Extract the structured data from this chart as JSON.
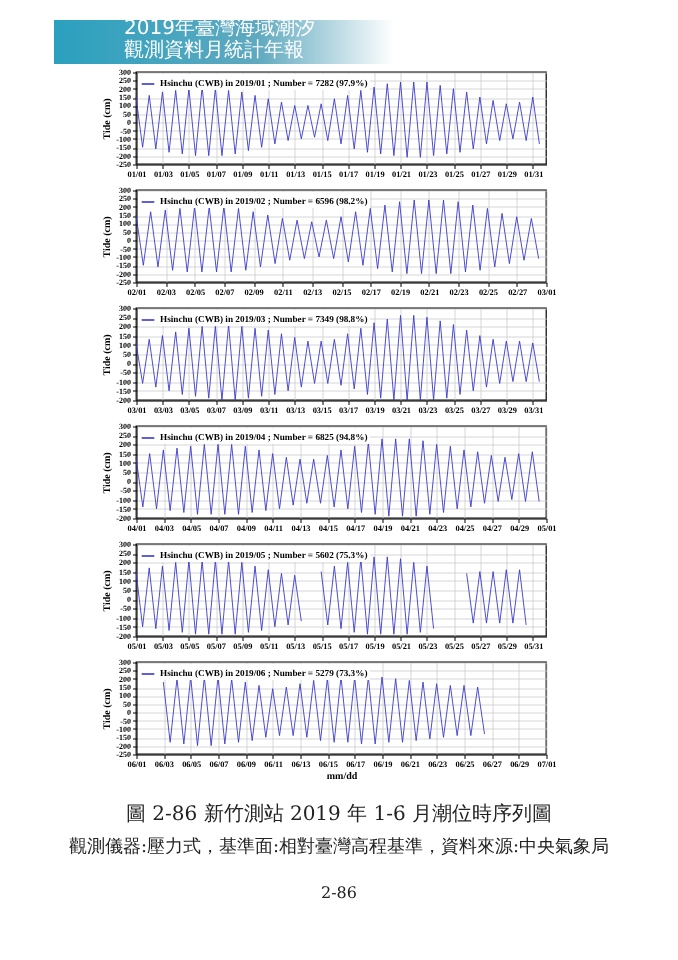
{
  "chart_data": [
    {
      "type": "line",
      "ylabel": "Tide (cm)",
      "annotations": [
        "2019年臺灣海域潮汐",
        "觀測資料月統計年報"
      ],
      "grid": true,
      "legend": "top left",
      "xlim": [
        "--01-01",
        "--02-01"
      ],
      "ylim": [
        -250,
        300
      ],
      "yticks": [
        -250,
        -200,
        -150,
        -100,
        -50,
        0,
        50,
        100,
        150,
        200,
        250,
        300
      ],
      "xticks": [
        {
          "value": "--01-01",
          "label": "01/01"
        },
        {
          "value": "--01-03",
          "label": "01/03"
        },
        {
          "value": "--01-05",
          "label": "01/05"
        },
        {
          "value": "--01-07",
          "label": "01/07"
        },
        {
          "value": "--01-09",
          "label": "01/09"
        },
        {
          "value": "--01-11",
          "label": "01/11"
        },
        {
          "value": "--01-13",
          "label": "01/13"
        },
        {
          "value": "--01-15",
          "label": "01/15"
        },
        {
          "value": "--01-17",
          "label": "01/17"
        },
        {
          "value": "--01-19",
          "label": "01/19"
        },
        {
          "value": "--01-21",
          "label": "01/21"
        },
        {
          "value": "--01-23",
          "label": "01/23"
        },
        {
          "value": "--01-25",
          "label": "01/25"
        },
        {
          "value": "--01-27",
          "label": "01/27"
        },
        {
          "value": "--01-29",
          "label": "01/29"
        },
        {
          "value": "--01-31",
          "label": "01/31"
        }
      ],
      "x": [
        "--01-01",
        "--01-01T12:00",
        "--01-02",
        "--01-02T12:00",
        "--01-03",
        "--01-03T12:00",
        "--01-04",
        "--01-04T12:00",
        "--01-05",
        "--01-05T12:00",
        "--01-06",
        "--01-06T12:00",
        "--01-07",
        "--01-07T12:00",
        "--01-08",
        "--01-08T12:00",
        "--01-09",
        "--01-09T12:00",
        "--01-10",
        "--01-10T12:00",
        "--01-11",
        "--01-11T12:00",
        "--01-12",
        "--01-12T12:00",
        "--01-13",
        "--01-13T12:00",
        "--01-14",
        "--01-14T12:00",
        "--01-15",
        "--01-15T12:00",
        "--01-16",
        "--01-16T12:00",
        "--01-17",
        "--01-17T12:00",
        "--01-18",
        "--01-18T12:00",
        "--01-19",
        "--01-19T12:00",
        "--01-20",
        "--01-20T12:00",
        "--01-21",
        "--01-21T12:00",
        "--01-22",
        "--01-22T12:00",
        "--01-23",
        "--01-23T12:00",
        "--01-24",
        "--01-24T12:00",
        "--01-25",
        "--01-25T12:00",
        "--01-26",
        "--01-26T12:00",
        "--01-27",
        "--01-27T12:00",
        "--01-28",
        "--01-28T12:00",
        "--01-29",
        "--01-29T12:00",
        "--01-30",
        "--01-30T12:00",
        "--01-31",
        "--01-31T12:00"
      ],
      "series": [
        {
          "name": "Hsinchu (CWB) in 2019/01 ; Number = 7282 (97.9%)",
          "color": "#3a3acc",
          "values": [
            150,
            -150,
            160,
            -160,
            180,
            -180,
            190,
            -190,
            200,
            -200,
            210,
            -200,
            200,
            -200,
            190,
            -190,
            180,
            -170,
            160,
            -150,
            140,
            -130,
            120,
            -110,
            100,
            -100,
            100,
            -90,
            110,
            -110,
            140,
            -130,
            160,
            -160,
            190,
            -180,
            210,
            -190,
            230,
            -200,
            240,
            -210,
            240,
            -210,
            240,
            -200,
            220,
            -190,
            200,
            -180,
            180,
            -160,
            150,
            -130,
            130,
            -110,
            110,
            -100,
            120,
            -110,
            150,
            -130
          ]
        }
      ]
    },
    {
      "type": "line",
      "ylabel": "Tide (cm)",
      "grid": true,
      "legend": "top left",
      "xlim": [
        "--02-01",
        "--03-01"
      ],
      "ylim": [
        -250,
        300
      ],
      "yticks": [
        -250,
        -200,
        -150,
        -100,
        -50,
        0,
        50,
        100,
        150,
        200,
        250,
        300
      ],
      "xticks": [
        {
          "value": "--02-01",
          "label": "02/01"
        },
        {
          "value": "--02-03",
          "label": "02/03"
        },
        {
          "value": "--02-05",
          "label": "02/05"
        },
        {
          "value": "--02-07",
          "label": "02/07"
        },
        {
          "value": "--02-09",
          "label": "02/09"
        },
        {
          "value": "--02-11",
          "label": "02/11"
        },
        {
          "value": "--02-13",
          "label": "02/13"
        },
        {
          "value": "--02-15",
          "label": "02/15"
        },
        {
          "value": "--02-17",
          "label": "02/17"
        },
        {
          "value": "--02-19",
          "label": "02/19"
        },
        {
          "value": "--02-21",
          "label": "02/21"
        },
        {
          "value": "--02-23",
          "label": "02/23"
        },
        {
          "value": "--02-25",
          "label": "02/25"
        },
        {
          "value": "--02-27",
          "label": "02/27"
        },
        {
          "value": "--03-01",
          "label": "03/01"
        }
      ],
      "x": [
        "--02-01",
        "--02-01T12:00",
        "--02-02",
        "--02-02T12:00",
        "--02-03",
        "--02-03T12:00",
        "--02-04",
        "--02-04T12:00",
        "--02-05",
        "--02-05T12:00",
        "--02-06",
        "--02-06T12:00",
        "--02-07",
        "--02-07T12:00",
        "--02-08",
        "--02-08T12:00",
        "--02-09",
        "--02-09T12:00",
        "--02-10",
        "--02-10T12:00",
        "--02-11",
        "--02-11T12:00",
        "--02-12",
        "--02-12T12:00",
        "--02-13",
        "--02-13T12:00",
        "--02-14",
        "--02-14T12:00",
        "--02-15",
        "--02-15T12:00",
        "--02-16",
        "--02-16T12:00",
        "--02-17",
        "--02-17T12:00",
        "--02-18",
        "--02-18T12:00",
        "--02-19",
        "--02-19T12:00",
        "--02-20",
        "--02-20T12:00",
        "--02-21",
        "--02-21T12:00",
        "--02-22",
        "--02-22T12:00",
        "--02-23",
        "--02-23T12:00",
        "--02-24",
        "--02-24T12:00",
        "--02-25",
        "--02-25T12:00",
        "--02-26",
        "--02-26T12:00",
        "--02-27",
        "--02-27T12:00",
        "--02-28",
        "--02-28T12:00"
      ],
      "series": [
        {
          "name": "Hsinchu (CWB) in 2019/02 ; Number = 6596 (98.2%)",
          "color": "#3a3acc",
          "values": [
            150,
            -150,
            170,
            -160,
            180,
            -180,
            190,
            -190,
            200,
            -190,
            200,
            -190,
            200,
            -190,
            190,
            -180,
            170,
            -160,
            150,
            -140,
            130,
            -120,
            120,
            -110,
            110,
            -100,
            120,
            -110,
            140,
            -130,
            170,
            -150,
            190,
            -170,
            210,
            -190,
            230,
            -200,
            240,
            -200,
            240,
            -200,
            240,
            -200,
            230,
            -190,
            210,
            -180,
            190,
            -160,
            160,
            -140,
            140,
            -120,
            130,
            -110
          ]
        }
      ]
    },
    {
      "type": "line",
      "ylabel": "Tide (cm)",
      "grid": true,
      "legend": "top left",
      "xlim": [
        "--03-01",
        "--04-01"
      ],
      "ylim": [
        -200,
        300
      ],
      "yticks": [
        -200,
        -150,
        -100,
        -50,
        0,
        50,
        100,
        150,
        200,
        250,
        300
      ],
      "xticks": [
        {
          "value": "--03-01",
          "label": "03/01"
        },
        {
          "value": "--03-03",
          "label": "03/03"
        },
        {
          "value": "--03-05",
          "label": "03/05"
        },
        {
          "value": "--03-07",
          "label": "03/07"
        },
        {
          "value": "--03-09",
          "label": "03/09"
        },
        {
          "value": "--03-11",
          "label": "03/11"
        },
        {
          "value": "--03-13",
          "label": "03/13"
        },
        {
          "value": "--03-15",
          "label": "03/15"
        },
        {
          "value": "--03-17",
          "label": "03/17"
        },
        {
          "value": "--03-19",
          "label": "03/19"
        },
        {
          "value": "--03-21",
          "label": "03/21"
        },
        {
          "value": "--03-23",
          "label": "03/23"
        },
        {
          "value": "--03-25",
          "label": "03/25"
        },
        {
          "value": "--03-27",
          "label": "03/27"
        },
        {
          "value": "--03-29",
          "label": "03/29"
        },
        {
          "value": "--03-31",
          "label": "03/31"
        }
      ],
      "x": [
        "--03-01",
        "--03-01T12:00",
        "--03-02",
        "--03-02T12:00",
        "--03-03",
        "--03-03T12:00",
        "--03-04",
        "--03-04T12:00",
        "--03-05",
        "--03-05T12:00",
        "--03-06",
        "--03-06T12:00",
        "--03-07",
        "--03-07T12:00",
        "--03-08",
        "--03-08T12:00",
        "--03-09",
        "--03-09T12:00",
        "--03-10",
        "--03-10T12:00",
        "--03-11",
        "--03-11T12:00",
        "--03-12",
        "--03-12T12:00",
        "--03-13",
        "--03-13T12:00",
        "--03-14",
        "--03-14T12:00",
        "--03-15",
        "--03-15T12:00",
        "--03-16",
        "--03-16T12:00",
        "--03-17",
        "--03-17T12:00",
        "--03-18",
        "--03-18T12:00",
        "--03-19",
        "--03-19T12:00",
        "--03-20",
        "--03-20T12:00",
        "--03-21",
        "--03-21T12:00",
        "--03-22",
        "--03-22T12:00",
        "--03-23",
        "--03-23T12:00",
        "--03-24",
        "--03-24T12:00",
        "--03-25",
        "--03-25T12:00",
        "--03-26",
        "--03-26T12:00",
        "--03-27",
        "--03-27T12:00",
        "--03-28",
        "--03-28T12:00",
        "--03-29",
        "--03-29T12:00",
        "--03-30",
        "--03-30T12:00",
        "--03-31",
        "--03-31T12:00"
      ],
      "series": [
        {
          "name": "Hsinchu (CWB) in 2019/03 ; Number = 7349 (98.8%)",
          "color": "#3a3acc",
          "values": [
            110,
            -110,
            130,
            -130,
            150,
            -150,
            170,
            -170,
            190,
            -180,
            200,
            -190,
            200,
            -200,
            210,
            -200,
            200,
            -190,
            190,
            -180,
            180,
            -170,
            160,
            -150,
            140,
            -130,
            120,
            -110,
            120,
            -110,
            130,
            -120,
            160,
            -140,
            190,
            -170,
            220,
            -190,
            240,
            -200,
            260,
            -200,
            260,
            -200,
            250,
            -200,
            230,
            -190,
            210,
            -170,
            180,
            -150,
            150,
            -130,
            130,
            -110,
            120,
            -100,
            120,
            -100,
            110,
            -100
          ]
        }
      ]
    },
    {
      "type": "line",
      "ylabel": "Tide (cm)",
      "grid": true,
      "legend": "top left",
      "xlim": [
        "--04-01",
        "--05-01"
      ],
      "ylim": [
        -200,
        300
      ],
      "yticks": [
        -200,
        -150,
        -100,
        -50,
        0,
        50,
        100,
        150,
        200,
        250,
        300
      ],
      "xticks": [
        {
          "value": "--04-01",
          "label": "04/01"
        },
        {
          "value": "--04-03",
          "label": "04/03"
        },
        {
          "value": "--04-05",
          "label": "04/05"
        },
        {
          "value": "--04-07",
          "label": "04/07"
        },
        {
          "value": "--04-09",
          "label": "04/09"
        },
        {
          "value": "--04-11",
          "label": "04/11"
        },
        {
          "value": "--04-13",
          "label": "04/13"
        },
        {
          "value": "--04-15",
          "label": "04/15"
        },
        {
          "value": "--04-17",
          "label": "04/17"
        },
        {
          "value": "--04-19",
          "label": "04/19"
        },
        {
          "value": "--04-21",
          "label": "04/21"
        },
        {
          "value": "--04-23",
          "label": "04/23"
        },
        {
          "value": "--04-25",
          "label": "04/25"
        },
        {
          "value": "--04-27",
          "label": "04/27"
        },
        {
          "value": "--04-29",
          "label": "04/29"
        },
        {
          "value": "--05-01",
          "label": "05/01"
        }
      ],
      "x": [
        "--04-01",
        "--04-01T12:00",
        "--04-02",
        "--04-02T12:00",
        "--04-03",
        "--04-03T12:00",
        "--04-04",
        "--04-04T12:00",
        "--04-05",
        "--04-05T12:00",
        "--04-06",
        "--04-06T12:00",
        "--04-07",
        "--04-07T12:00",
        "--04-08",
        "--04-08T12:00",
        "--04-09",
        "--04-09T12:00",
        "--04-10",
        "--04-10T12:00",
        "--04-11",
        "--04-11T12:00",
        "--04-12",
        "--04-12T12:00",
        "--04-13",
        "--04-13T12:00",
        "--04-14",
        "--04-14T12:00",
        "--04-15",
        "--04-15T12:00",
        "--04-16",
        "--04-16T12:00",
        "--04-17",
        "--04-17T12:00",
        "--04-18",
        "--04-18T12:00",
        "--04-19",
        "--04-19T12:00",
        "--04-20",
        "--04-20T12:00",
        "--04-21",
        "--04-21T12:00",
        "--04-22",
        "--04-22T12:00",
        "--04-23",
        "--04-23T12:00",
        "--04-24",
        "--04-24T12:00",
        "--04-25",
        "--04-25T12:00",
        "--04-26",
        "--04-26T12:00",
        "--04-27",
        "--04-27T12:00",
        "--04-28",
        "--04-28T12:00",
        "--04-29",
        "--04-29T12:00",
        "--04-30",
        "--04-30T12:00"
      ],
      "series": [
        {
          "name": "Hsinchu (CWB) in 2019/04 ; Number = 6825 (94.8%)",
          "color": "#3a3acc",
          "values": [
            130,
            -140,
            150,
            -150,
            170,
            -160,
            180,
            -170,
            190,
            -180,
            200,
            -180,
            200,
            -180,
            200,
            -180,
            190,
            -170,
            170,
            -160,
            150,
            -150,
            130,
            -130,
            120,
            -120,
            120,
            -120,
            140,
            -140,
            170,
            -150,
            190,
            -170,
            210,
            -180,
            230,
            -190,
            230,
            -190,
            230,
            -190,
            220,
            -180,
            200,
            -170,
            190,
            -150,
            170,
            -140,
            160,
            -120,
            140,
            -110,
            130,
            -100,
            150,
            -110,
            160,
            -110
          ]
        }
      ]
    },
    {
      "type": "line",
      "ylabel": "Tide (cm)",
      "grid": true,
      "legend": "top left",
      "xlim": [
        "--05-01",
        "--06-01"
      ],
      "ylim": [
        -200,
        300
      ],
      "yticks": [
        -200,
        -150,
        -100,
        -50,
        0,
        50,
        100,
        150,
        200,
        250,
        300
      ],
      "xticks": [
        {
          "value": "--05-01",
          "label": "05/01"
        },
        {
          "value": "--05-03",
          "label": "05/03"
        },
        {
          "value": "--05-05",
          "label": "05/05"
        },
        {
          "value": "--05-07",
          "label": "05/07"
        },
        {
          "value": "--05-09",
          "label": "05/09"
        },
        {
          "value": "--05-11",
          "label": "05/11"
        },
        {
          "value": "--05-13",
          "label": "05/13"
        },
        {
          "value": "--05-15",
          "label": "05/15"
        },
        {
          "value": "--05-17",
          "label": "05/17"
        },
        {
          "value": "--05-19",
          "label": "05/19"
        },
        {
          "value": "--05-21",
          "label": "05/21"
        },
        {
          "value": "--05-23",
          "label": "05/23"
        },
        {
          "value": "--05-25",
          "label": "05/25"
        },
        {
          "value": "--05-27",
          "label": "05/27"
        },
        {
          "value": "--05-29",
          "label": "05/29"
        },
        {
          "value": "--05-31",
          "label": "05/31"
        }
      ],
      "x": [
        "--05-01",
        "--05-01T12:00",
        "--05-02",
        "--05-02T12:00",
        "--05-03",
        "--05-03T12:00",
        "--05-04",
        "--05-04T12:00",
        "--05-05",
        "--05-05T12:00",
        "--05-06",
        "--05-06T12:00",
        "--05-07",
        "--05-07T12:00",
        "--05-08",
        "--05-08T12:00",
        "--05-09",
        "--05-09T12:00",
        "--05-10",
        "--05-10T12:00",
        "--05-11",
        "--05-11T12:00",
        "--05-12",
        "--05-12T12:00",
        "--05-13",
        "--05-13T12:00",
        "--05-14",
        "--05-14T12:00",
        "--05-15",
        "--05-15T12:00",
        "--05-16",
        "--05-16T12:00",
        "--05-17",
        "--05-17T12:00",
        "--05-18",
        "--05-18T12:00",
        "--05-19",
        "--05-19T12:00",
        "--05-20",
        "--05-20T12:00",
        "--05-21",
        "--05-21T12:00",
        "--05-22",
        "--05-22T12:00",
        "--05-23",
        "--05-23T12:00",
        "--05-24",
        "--05-24T12:00",
        "--05-25",
        "--05-25T12:00",
        "--05-26",
        "--05-26T12:00",
        "--05-27",
        "--05-27T12:00",
        "--05-28",
        "--05-28T12:00",
        "--05-29",
        "--05-29T12:00",
        "--05-30",
        "--05-30T12:00"
      ],
      "series": [
        {
          "name": "Hsinchu (CWB) in 2019/05 ; Number = 5602 (75.3%)",
          "color": "#3a3acc",
          "values": [
            150,
            -150,
            170,
            -160,
            180,
            -170,
            200,
            -180,
            210,
            -190,
            210,
            -190,
            210,
            -190,
            210,
            -190,
            200,
            -180,
            180,
            -170,
            160,
            -150,
            140,
            -140,
            130,
            -120,
            null,
            null,
            150,
            -140,
            180,
            -160,
            200,
            -180,
            220,
            -190,
            230,
            -190,
            230,
            -190,
            220,
            -190,
            200,
            -180,
            180,
            -160,
            null,
            null,
            null,
            null,
            140,
            -130,
            150,
            -130,
            150,
            -130,
            160,
            -130,
            160,
            -140
          ]
        }
      ]
    },
    {
      "type": "line",
      "ylabel": "Tide (cm)",
      "xlabel": "mm/dd",
      "annotations": [
        "圖 2-86 新竹測站 2019 年 1-6 月潮位時序列圖",
        "觀測儀器:壓力式，基準面:相對臺灣高程基準，資料來源:中央氣象局",
        "2-86"
      ],
      "grid": true,
      "legend": "top left",
      "xlim": [
        "--06-01",
        "--07-01"
      ],
      "ylim": [
        -250,
        300
      ],
      "yticks": [
        -250,
        -200,
        -150,
        -100,
        -50,
        0,
        50,
        100,
        150,
        200,
        250,
        300
      ],
      "xticks": [
        {
          "value": "--06-01",
          "label": "06/01"
        },
        {
          "value": "--06-03",
          "label": "06/03"
        },
        {
          "value": "--06-05",
          "label": "06/05"
        },
        {
          "value": "--06-07",
          "label": "06/07"
        },
        {
          "value": "--06-09",
          "label": "06/09"
        },
        {
          "value": "--06-11",
          "label": "06/11"
        },
        {
          "value": "--06-13",
          "label": "06/13"
        },
        {
          "value": "--06-15",
          "label": "06/15"
        },
        {
          "value": "--06-17",
          "label": "06/17"
        },
        {
          "value": "--06-19",
          "label": "06/19"
        },
        {
          "value": "--06-21",
          "label": "06/21"
        },
        {
          "value": "--06-23",
          "label": "06/23"
        },
        {
          "value": "--06-25",
          "label": "06/25"
        },
        {
          "value": "--06-27",
          "label": "06/27"
        },
        {
          "value": "--06-29",
          "label": "06/29"
        },
        {
          "value": "--07-01",
          "label": "07/01"
        }
      ],
      "x": [
        "--06-03",
        "--06-03T12:00",
        "--06-04",
        "--06-04T12:00",
        "--06-05",
        "--06-05T12:00",
        "--06-06",
        "--06-06T12:00",
        "--06-07",
        "--06-07T12:00",
        "--06-08",
        "--06-08T12:00",
        "--06-09",
        "--06-09T12:00",
        "--06-10",
        "--06-10T12:00",
        "--06-11",
        "--06-11T12:00",
        "--06-12",
        "--06-12T12:00",
        "--06-13",
        "--06-13T12:00",
        "--06-14",
        "--06-14T12:00",
        "--06-15",
        "--06-15T12:00",
        "--06-16",
        "--06-16T12:00",
        "--06-17",
        "--06-17T12:00",
        "--06-18",
        "--06-18T12:00",
        "--06-19",
        "--06-19T12:00",
        "--06-20",
        "--06-20T12:00",
        "--06-21",
        "--06-21T12:00",
        "--06-22",
        "--06-22T12:00",
        "--06-23",
        "--06-23T12:00",
        "--06-24",
        "--06-24T12:00",
        "--06-25",
        "--06-25T12:00",
        "--06-26",
        "--06-26T12:00"
      ],
      "series": [
        {
          "name": "Hsinchu (CWB) in 2019/06 ; Number = 5279 (73.3%)",
          "color": "#3a3acc",
          "values": [
            180,
            -180,
            200,
            -190,
            210,
            -200,
            210,
            -200,
            210,
            -190,
            200,
            -180,
            180,
            -170,
            160,
            -150,
            140,
            -140,
            150,
            -140,
            170,
            -150,
            190,
            -170,
            200,
            -180,
            210,
            -180,
            210,
            -190,
            210,
            -190,
            210,
            -180,
            200,
            -180,
            190,
            -170,
            180,
            -160,
            170,
            -150,
            160,
            -140,
            160,
            -140,
            150,
            -130
          ]
        }
      ]
    }
  ]
}
